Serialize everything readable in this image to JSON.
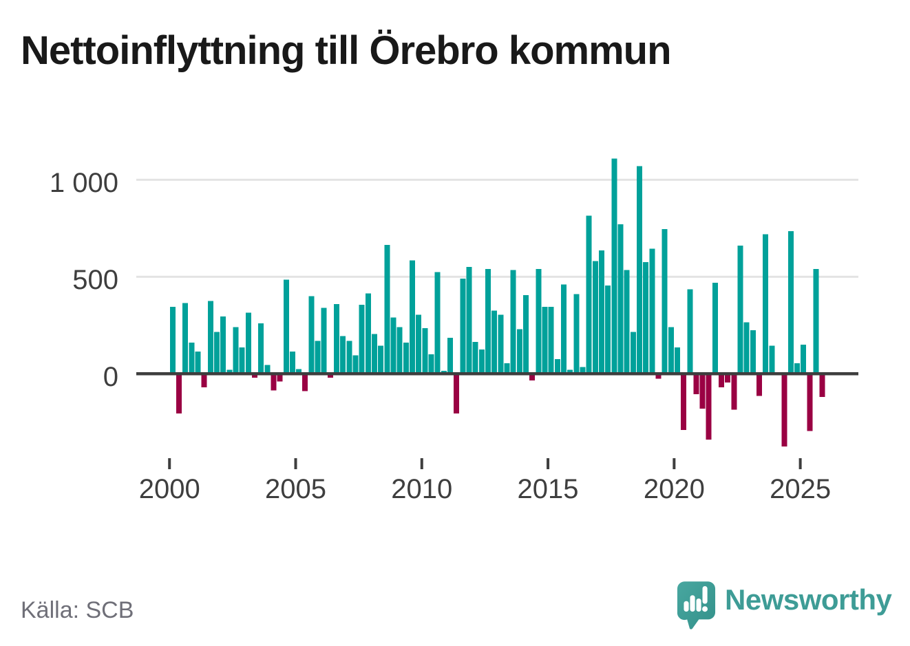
{
  "title": "Nettoinflyttning till Örebro kommun",
  "source": "Källa: SCB",
  "logo": {
    "wordmark": "Newsworthy"
  },
  "colors": {
    "positive": "#00a19a",
    "negative": "#9a0143",
    "grid": "#e3e3e3",
    "axis": "#3e3e3e",
    "tick_text": "#3e3e3e",
    "title_text": "#191919",
    "source_text": "#6f6f78",
    "logo_teal": "#3e9c96",
    "logo_teal_dark": "#33918a",
    "logo_teal_light": "#48a7a0"
  },
  "chart_data": {
    "type": "bar",
    "title": "Nettoinflyttning till Örebro kommun",
    "frequency": "quarterly",
    "x_range": [
      "2000 Q1",
      "2025 Q4"
    ],
    "ylim": [
      -400,
      1150
    ],
    "grid": "horizontal",
    "legend": "none",
    "yticks": [
      {
        "value": 0,
        "label": "0"
      },
      {
        "value": 500,
        "label": "500"
      },
      {
        "value": 1000,
        "label": "1 000"
      }
    ],
    "xticks": [
      {
        "value": 2000,
        "label": "2000"
      },
      {
        "value": 2005,
        "label": "2005"
      },
      {
        "value": 2010,
        "label": "2010"
      },
      {
        "value": 2015,
        "label": "2015"
      },
      {
        "value": 2020,
        "label": "2020"
      },
      {
        "value": 2025,
        "label": "2025"
      }
    ],
    "values_by_year": [
      {
        "year": 2000,
        "quarters": [
          345,
          -205,
          365,
          160
        ]
      },
      {
        "year": 2001,
        "quarters": [
          115,
          -70,
          375,
          215
        ]
      },
      {
        "year": 2002,
        "quarters": [
          295,
          20,
          240,
          135
        ]
      },
      {
        "year": 2003,
        "quarters": [
          315,
          -20,
          260,
          45
        ]
      },
      {
        "year": 2004,
        "quarters": [
          -85,
          -40,
          485,
          115
        ]
      },
      {
        "year": 2005,
        "quarters": [
          25,
          -90,
          400,
          170
        ]
      },
      {
        "year": 2006,
        "quarters": [
          340,
          -20,
          360,
          195
        ]
      },
      {
        "year": 2007,
        "quarters": [
          170,
          95,
          355,
          415
        ]
      },
      {
        "year": 2008,
        "quarters": [
          205,
          145,
          665,
          290
        ]
      },
      {
        "year": 2009,
        "quarters": [
          240,
          160,
          585,
          305
        ]
      },
      {
        "year": 2010,
        "quarters": [
          235,
          100,
          525,
          15
        ]
      },
      {
        "year": 2011,
        "quarters": [
          185,
          -205,
          490,
          550
        ]
      },
      {
        "year": 2012,
        "quarters": [
          165,
          125,
          540,
          325
        ]
      },
      {
        "year": 2013,
        "quarters": [
          305,
          55,
          535,
          230
        ]
      },
      {
        "year": 2014,
        "quarters": [
          405,
          -35,
          540,
          345
        ]
      },
      {
        "year": 2015,
        "quarters": [
          345,
          75,
          460,
          20
        ]
      },
      {
        "year": 2016,
        "quarters": [
          410,
          35,
          815,
          580
        ]
      },
      {
        "year": 2017,
        "quarters": [
          635,
          455,
          1110,
          770
        ]
      },
      {
        "year": 2018,
        "quarters": [
          535,
          215,
          1070,
          575
        ]
      },
      {
        "year": 2019,
        "quarters": [
          645,
          -25,
          745,
          240
        ]
      },
      {
        "year": 2020,
        "quarters": [
          135,
          -290,
          435,
          -105
        ]
      },
      {
        "year": 2021,
        "quarters": [
          -180,
          -340,
          470,
          -70
        ]
      },
      {
        "year": 2022,
        "quarters": [
          -45,
          -185,
          660,
          265
        ]
      },
      {
        "year": 2023,
        "quarters": [
          225,
          -115,
          720,
          145
        ]
      },
      {
        "year": 2024,
        "quarters": [
          0,
          -375,
          735,
          55
        ]
      },
      {
        "year": 2025,
        "quarters": [
          150,
          -295,
          540,
          -120
        ]
      }
    ]
  }
}
